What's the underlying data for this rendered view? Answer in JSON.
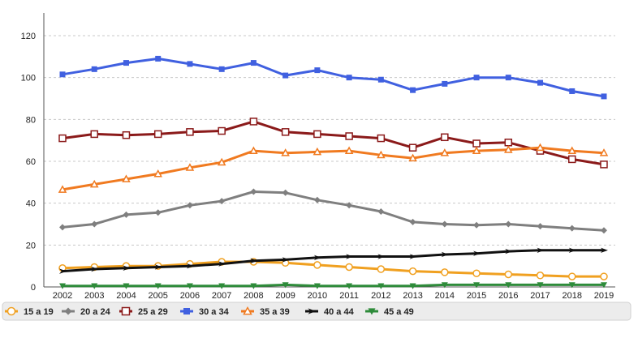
{
  "chart_data": {
    "type": "line",
    "title": "",
    "xlabel": "",
    "ylabel": "",
    "x": [
      "2002",
      "2003",
      "2004",
      "2005",
      "2006",
      "2007",
      "2008",
      "2009",
      "2010",
      "2011",
      "2012",
      "2013",
      "2014",
      "2015",
      "2016",
      "2017",
      "2018",
      "2019"
    ],
    "ylim": [
      0,
      120
    ],
    "yticks": [
      0,
      20,
      40,
      60,
      80,
      100,
      120
    ],
    "grid": "horizontal dashed",
    "legend_position": "bottom",
    "series": [
      {
        "name": "15 a 19",
        "color": "#f0a020",
        "marker": "circle-open",
        "values": [
          9,
          9.5,
          10,
          10,
          11,
          12,
          12,
          11.5,
          10.5,
          9.5,
          8.5,
          7.5,
          7,
          6.5,
          6,
          5.5,
          5,
          5
        ]
      },
      {
        "name": "20 a 24",
        "color": "#7f7f7f",
        "marker": "diamond",
        "values": [
          28.5,
          30,
          34.5,
          35.5,
          39,
          41,
          45.5,
          45,
          41.5,
          39,
          36,
          31,
          30,
          29.5,
          30,
          29,
          28,
          27
        ]
      },
      {
        "name": "25 a 29",
        "color": "#8b1a1a",
        "marker": "square-open",
        "values": [
          71,
          73,
          72.5,
          73,
          74,
          74.5,
          79,
          74,
          73,
          72,
          71,
          66.5,
          71.5,
          68.5,
          69,
          65,
          61,
          58.5
        ]
      },
      {
        "name": "30 a 34",
        "color": "#4060e0",
        "marker": "square-filled",
        "values": [
          101.5,
          104,
          107,
          109,
          106.5,
          104,
          107,
          101,
          103.5,
          100,
          99,
          94,
          97,
          100,
          100,
          97.5,
          93.5,
          91
        ]
      },
      {
        "name": "35 a 39",
        "color": "#f07a20",
        "marker": "triangle-open",
        "values": [
          46.5,
          49,
          51.5,
          54,
          57,
          59.5,
          65,
          64,
          64.5,
          65,
          63,
          61.5,
          64,
          65,
          65.5,
          66.5,
          65,
          64
        ]
      },
      {
        "name": "40 a 44",
        "color": "#111111",
        "marker": "arrow",
        "values": [
          7.5,
          8.5,
          9,
          9.5,
          10,
          11,
          12.5,
          13,
          14,
          14.5,
          14.5,
          14.5,
          15.5,
          16,
          17,
          17.5,
          17.5,
          17.5
        ]
      },
      {
        "name": "45 a 49",
        "color": "#2e8b3a",
        "marker": "triangle-down",
        "values": [
          0.5,
          0.5,
          0.5,
          0.5,
          0.5,
          0.5,
          0.5,
          1,
          0.5,
          0.5,
          0.5,
          0.5,
          1,
          1,
          1,
          1,
          1,
          1
        ]
      }
    ]
  }
}
